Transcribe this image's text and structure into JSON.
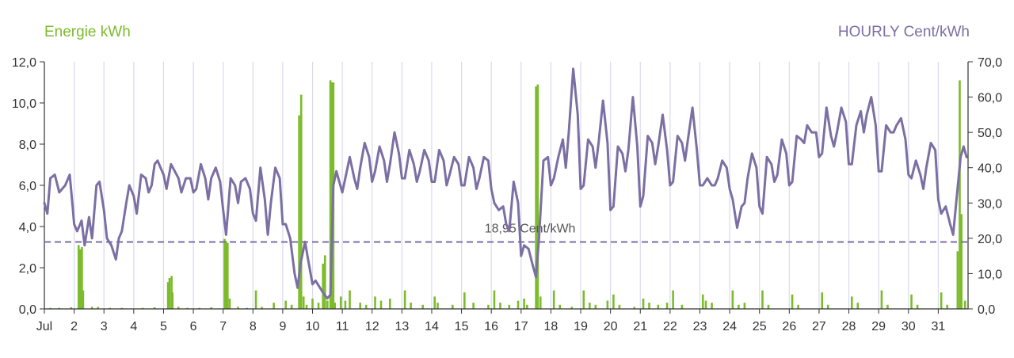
{
  "colors": {
    "energy": "#7cbb2c",
    "price": "#7b6fa3",
    "grid": "#d9d9ee",
    "axis": "#333333"
  },
  "chart_data": {
    "type": "bar+line",
    "left_axis_label": "Energie kWh",
    "right_axis_label": "HOURLY Cent/kWh",
    "left_ylim": [
      0,
      12
    ],
    "right_ylim": [
      0,
      70
    ],
    "left_ticks": [
      "0,0",
      "2,0",
      "4,0",
      "6,0",
      "8,0",
      "10,0",
      "12,0"
    ],
    "right_ticks": [
      "0,0",
      "10,0",
      "20,0",
      "30,0",
      "40,0",
      "50,0",
      "60,0",
      "70,0"
    ],
    "x_ticks": [
      "Jul",
      "2",
      "3",
      "4",
      "5",
      "6",
      "7",
      "8",
      "9",
      "10",
      "11",
      "12",
      "13",
      "14",
      "15",
      "16",
      "17",
      "18",
      "19",
      "20",
      "21",
      "22",
      "23",
      "24",
      "25",
      "26",
      "27",
      "28",
      "29",
      "30",
      "31"
    ],
    "x_range_days": [
      1,
      32
    ],
    "grid": "vertical at day boundaries",
    "reference_line": {
      "value": 18.95,
      "label": "18,95 Cent/kWh",
      "axis": "right",
      "style": "dashed"
    },
    "price_series": {
      "name": "HOURLY Cent/kWh",
      "axis": "right",
      "points": [
        [
          1.0,
          30
        ],
        [
          1.1,
          27
        ],
        [
          1.2,
          37
        ],
        [
          1.35,
          38
        ],
        [
          1.5,
          33
        ],
        [
          1.7,
          35
        ],
        [
          1.85,
          38
        ],
        [
          1.95,
          29
        ],
        [
          2.0,
          24
        ],
        [
          2.1,
          22
        ],
        [
          2.25,
          25
        ],
        [
          2.35,
          18
        ],
        [
          2.5,
          26
        ],
        [
          2.6,
          20
        ],
        [
          2.75,
          35
        ],
        [
          2.85,
          36
        ],
        [
          3.0,
          28
        ],
        [
          3.1,
          20
        ],
        [
          3.25,
          18
        ],
        [
          3.4,
          14
        ],
        [
          3.5,
          20
        ],
        [
          3.6,
          22
        ],
        [
          3.75,
          30
        ],
        [
          3.85,
          35
        ],
        [
          4.0,
          32
        ],
        [
          4.1,
          27
        ],
        [
          4.25,
          38
        ],
        [
          4.4,
          37
        ],
        [
          4.5,
          33
        ],
        [
          4.6,
          35
        ],
        [
          4.7,
          41
        ],
        [
          4.8,
          42
        ],
        [
          5.0,
          38
        ],
        [
          5.1,
          34
        ],
        [
          5.25,
          41
        ],
        [
          5.5,
          37
        ],
        [
          5.6,
          33
        ],
        [
          5.75,
          37
        ],
        [
          5.9,
          37
        ],
        [
          6.0,
          33
        ],
        [
          6.1,
          34
        ],
        [
          6.25,
          41
        ],
        [
          6.4,
          37
        ],
        [
          6.5,
          31
        ],
        [
          6.6,
          37
        ],
        [
          6.75,
          40
        ],
        [
          6.9,
          36
        ],
        [
          7.0,
          28
        ],
        [
          7.1,
          21
        ],
        [
          7.25,
          37
        ],
        [
          7.4,
          35
        ],
        [
          7.5,
          30
        ],
        [
          7.6,
          36
        ],
        [
          7.75,
          37
        ],
        [
          7.9,
          34
        ],
        [
          8.0,
          27
        ],
        [
          8.1,
          25
        ],
        [
          8.25,
          40
        ],
        [
          8.4,
          31
        ],
        [
          8.5,
          21
        ],
        [
          8.6,
          30
        ],
        [
          8.75,
          40
        ],
        [
          8.9,
          37
        ],
        [
          9.0,
          24
        ],
        [
          9.1,
          24
        ],
        [
          9.25,
          20
        ],
        [
          9.4,
          10
        ],
        [
          9.5,
          6
        ],
        [
          9.6,
          13
        ],
        [
          9.75,
          19
        ],
        [
          9.85,
          14
        ],
        [
          10.0,
          7
        ],
        [
          10.1,
          8
        ],
        [
          10.25,
          6
        ],
        [
          10.4,
          4
        ],
        [
          10.5,
          3
        ],
        [
          10.6,
          4
        ],
        [
          10.7,
          35
        ],
        [
          10.8,
          39
        ],
        [
          11.0,
          33
        ],
        [
          11.1,
          37
        ],
        [
          11.25,
          43
        ],
        [
          11.4,
          37
        ],
        [
          11.5,
          34
        ],
        [
          11.6,
          40
        ],
        [
          11.75,
          47
        ],
        [
          11.9,
          43
        ],
        [
          12.0,
          36
        ],
        [
          12.1,
          39
        ],
        [
          12.25,
          46
        ],
        [
          12.4,
          42
        ],
        [
          12.5,
          36
        ],
        [
          12.6,
          41
        ],
        [
          12.75,
          50
        ],
        [
          12.9,
          44
        ],
        [
          13.0,
          37
        ],
        [
          13.1,
          37
        ],
        [
          13.25,
          45
        ],
        [
          13.4,
          41
        ],
        [
          13.5,
          36
        ],
        [
          13.6,
          39
        ],
        [
          13.75,
          45
        ],
        [
          13.9,
          42
        ],
        [
          14.0,
          36
        ],
        [
          14.1,
          36
        ],
        [
          14.25,
          45
        ],
        [
          14.4,
          42
        ],
        [
          14.5,
          35
        ],
        [
          14.6,
          38
        ],
        [
          14.75,
          43
        ],
        [
          14.9,
          41
        ],
        [
          15.0,
          35
        ],
        [
          15.1,
          35
        ],
        [
          15.25,
          43
        ],
        [
          15.4,
          40
        ],
        [
          15.5,
          34
        ],
        [
          15.6,
          37
        ],
        [
          15.75,
          43
        ],
        [
          15.9,
          42
        ],
        [
          16.0,
          34
        ],
        [
          16.1,
          30
        ],
        [
          16.25,
          28
        ],
        [
          16.4,
          29
        ],
        [
          16.5,
          24
        ],
        [
          16.6,
          22
        ],
        [
          16.75,
          36
        ],
        [
          16.9,
          30
        ],
        [
          17.0,
          15
        ],
        [
          17.1,
          18
        ],
        [
          17.25,
          17
        ],
        [
          17.4,
          12
        ],
        [
          17.5,
          9
        ],
        [
          17.6,
          20
        ],
        [
          17.75,
          42
        ],
        [
          17.9,
          43
        ],
        [
          18.0,
          35
        ],
        [
          18.1,
          37
        ],
        [
          18.25,
          43
        ],
        [
          18.4,
          48
        ],
        [
          18.5,
          40
        ],
        [
          18.6,
          50
        ],
        [
          18.75,
          68
        ],
        [
          18.9,
          55
        ],
        [
          19.0,
          34
        ],
        [
          19.1,
          35
        ],
        [
          19.25,
          48
        ],
        [
          19.4,
          46
        ],
        [
          19.5,
          40
        ],
        [
          19.6,
          47
        ],
        [
          19.75,
          59
        ],
        [
          19.9,
          47
        ],
        [
          20.0,
          28
        ],
        [
          20.1,
          29
        ],
        [
          20.25,
          46
        ],
        [
          20.4,
          44
        ],
        [
          20.5,
          39
        ],
        [
          20.6,
          45
        ],
        [
          20.75,
          60
        ],
        [
          20.9,
          46
        ],
        [
          21.0,
          29
        ],
        [
          21.1,
          32
        ],
        [
          21.25,
          49
        ],
        [
          21.4,
          47
        ],
        [
          21.5,
          41
        ],
        [
          21.6,
          46
        ],
        [
          21.75,
          55
        ],
        [
          21.9,
          45
        ],
        [
          22.0,
          35
        ],
        [
          22.1,
          36
        ],
        [
          22.25,
          49
        ],
        [
          22.4,
          47
        ],
        [
          22.5,
          42
        ],
        [
          22.6,
          48
        ],
        [
          22.75,
          57
        ],
        [
          22.9,
          45
        ],
        [
          23.0,
          35
        ],
        [
          23.1,
          35
        ],
        [
          23.25,
          37
        ],
        [
          23.4,
          35
        ],
        [
          23.5,
          35
        ],
        [
          23.6,
          37
        ],
        [
          23.75,
          42
        ],
        [
          23.9,
          40
        ],
        [
          24.0,
          34
        ],
        [
          24.1,
          31
        ],
        [
          24.25,
          23
        ],
        [
          24.4,
          29
        ],
        [
          24.5,
          30
        ],
        [
          24.6,
          37
        ],
        [
          24.75,
          44
        ],
        [
          24.9,
          40
        ],
        [
          25.0,
          29
        ],
        [
          25.1,
          27
        ],
        [
          25.25,
          43
        ],
        [
          25.4,
          41
        ],
        [
          25.5,
          36
        ],
        [
          25.6,
          38
        ],
        [
          25.75,
          48
        ],
        [
          25.9,
          44
        ],
        [
          26.0,
          35
        ],
        [
          26.1,
          36
        ],
        [
          26.25,
          49
        ],
        [
          26.4,
          48
        ],
        [
          26.5,
          47
        ],
        [
          26.6,
          52
        ],
        [
          26.75,
          50
        ],
        [
          26.9,
          50
        ],
        [
          27.0,
          43
        ],
        [
          27.1,
          44
        ],
        [
          27.25,
          57
        ],
        [
          27.4,
          49
        ],
        [
          27.5,
          46
        ],
        [
          27.6,
          50
        ],
        [
          27.75,
          57
        ],
        [
          27.9,
          53
        ],
        [
          28.0,
          41
        ],
        [
          28.1,
          41
        ],
        [
          28.25,
          52
        ],
        [
          28.4,
          56
        ],
        [
          28.5,
          50
        ],
        [
          28.6,
          55
        ],
        [
          28.75,
          60
        ],
        [
          28.9,
          52
        ],
        [
          29.0,
          39
        ],
        [
          29.1,
          39
        ],
        [
          29.25,
          52
        ],
        [
          29.4,
          50
        ],
        [
          29.5,
          50
        ],
        [
          29.6,
          52
        ],
        [
          29.75,
          54
        ],
        [
          29.9,
          48
        ],
        [
          30.0,
          38
        ],
        [
          30.1,
          37
        ],
        [
          30.25,
          42
        ],
        [
          30.4,
          38
        ],
        [
          30.5,
          34
        ],
        [
          30.6,
          40
        ],
        [
          30.75,
          47
        ],
        [
          30.9,
          45
        ],
        [
          31.0,
          31
        ],
        [
          31.1,
          27
        ],
        [
          31.25,
          29
        ],
        [
          31.4,
          24
        ],
        [
          31.5,
          21
        ],
        [
          31.6,
          30
        ],
        [
          31.75,
          43
        ],
        [
          31.85,
          46
        ],
        [
          31.95,
          43
        ]
      ]
    },
    "energy_series": {
      "name": "Energie kWh",
      "axis": "left",
      "bars": [
        [
          1.2,
          0.05
        ],
        [
          1.5,
          0.05
        ],
        [
          1.9,
          0.08
        ],
        [
          2.15,
          3.1
        ],
        [
          2.2,
          2.9
        ],
        [
          2.26,
          3.0
        ],
        [
          2.3,
          0.9
        ],
        [
          2.6,
          0.1
        ],
        [
          2.8,
          0.1
        ],
        [
          3.2,
          0.05
        ],
        [
          3.6,
          0.05
        ],
        [
          4.3,
          0.05
        ],
        [
          4.7,
          0.08
        ],
        [
          5.15,
          1.3
        ],
        [
          5.2,
          1.5
        ],
        [
          5.27,
          1.6
        ],
        [
          5.3,
          0.8
        ],
        [
          5.5,
          0.1
        ],
        [
          5.8,
          0.05
        ],
        [
          6.2,
          0.05
        ],
        [
          6.6,
          0.08
        ],
        [
          7.05,
          3.4
        ],
        [
          7.1,
          3.3
        ],
        [
          7.15,
          3.2
        ],
        [
          7.22,
          0.5
        ],
        [
          7.5,
          0.1
        ],
        [
          7.8,
          0.05
        ],
        [
          8.1,
          0.9
        ],
        [
          8.3,
          0.1
        ],
        [
          8.7,
          0.3
        ],
        [
          9.1,
          0.4
        ],
        [
          9.3,
          0.2
        ],
        [
          9.55,
          9.4
        ],
        [
          9.62,
          10.4
        ],
        [
          9.7,
          0.6
        ],
        [
          9.8,
          0.2
        ],
        [
          10.0,
          0.5
        ],
        [
          10.2,
          0.3
        ],
        [
          10.35,
          2.2
        ],
        [
          10.42,
          2.6
        ],
        [
          10.5,
          0.4
        ],
        [
          10.6,
          11.1
        ],
        [
          10.65,
          11.0
        ],
        [
          10.7,
          11.0
        ],
        [
          10.75,
          0.3
        ],
        [
          10.95,
          0.6
        ],
        [
          11.1,
          0.4
        ],
        [
          11.25,
          0.9
        ],
        [
          11.6,
          0.3
        ],
        [
          11.8,
          0.2
        ],
        [
          12.1,
          0.6
        ],
        [
          12.3,
          0.4
        ],
        [
          12.6,
          0.5
        ],
        [
          13.1,
          0.9
        ],
        [
          13.3,
          0.3
        ],
        [
          13.7,
          0.2
        ],
        [
          14.1,
          0.6
        ],
        [
          14.2,
          0.3
        ],
        [
          14.7,
          0.2
        ],
        [
          15.1,
          0.8
        ],
        [
          15.4,
          0.3
        ],
        [
          15.9,
          0.2
        ],
        [
          16.1,
          0.9
        ],
        [
          16.3,
          0.3
        ],
        [
          16.6,
          0.2
        ],
        [
          16.9,
          0.4
        ],
        [
          17.1,
          0.5
        ],
        [
          17.2,
          0.2
        ],
        [
          17.5,
          10.8
        ],
        [
          17.56,
          10.9
        ],
        [
          17.65,
          0.6
        ],
        [
          18.1,
          0.9
        ],
        [
          18.3,
          0.2
        ],
        [
          18.7,
          0.1
        ],
        [
          19.1,
          0.9
        ],
        [
          19.3,
          0.3
        ],
        [
          19.5,
          0.2
        ],
        [
          19.9,
          0.4
        ],
        [
          20.1,
          0.7
        ],
        [
          20.3,
          0.2
        ],
        [
          20.8,
          0.1
        ],
        [
          21.1,
          0.5
        ],
        [
          21.3,
          0.3
        ],
        [
          21.6,
          0.2
        ],
        [
          21.9,
          0.3
        ],
        [
          22.1,
          0.9
        ],
        [
          22.4,
          0.2
        ],
        [
          23.1,
          0.7
        ],
        [
          23.2,
          0.4
        ],
        [
          23.4,
          0.3
        ],
        [
          24.1,
          0.9
        ],
        [
          24.3,
          0.2
        ],
        [
          24.5,
          0.3
        ],
        [
          25.1,
          0.9
        ],
        [
          25.3,
          0.2
        ],
        [
          26.1,
          0.7
        ],
        [
          26.3,
          0.2
        ],
        [
          27.1,
          0.8
        ],
        [
          27.3,
          0.2
        ],
        [
          28.1,
          0.6
        ],
        [
          28.3,
          0.3
        ],
        [
          29.1,
          0.9
        ],
        [
          29.3,
          0.2
        ],
        [
          30.1,
          0.7
        ],
        [
          30.3,
          0.2
        ],
        [
          31.1,
          0.8
        ],
        [
          31.3,
          0.2
        ],
        [
          31.65,
          2.8
        ],
        [
          31.72,
          11.1
        ],
        [
          31.78,
          4.6
        ],
        [
          31.9,
          0.4
        ]
      ]
    }
  }
}
